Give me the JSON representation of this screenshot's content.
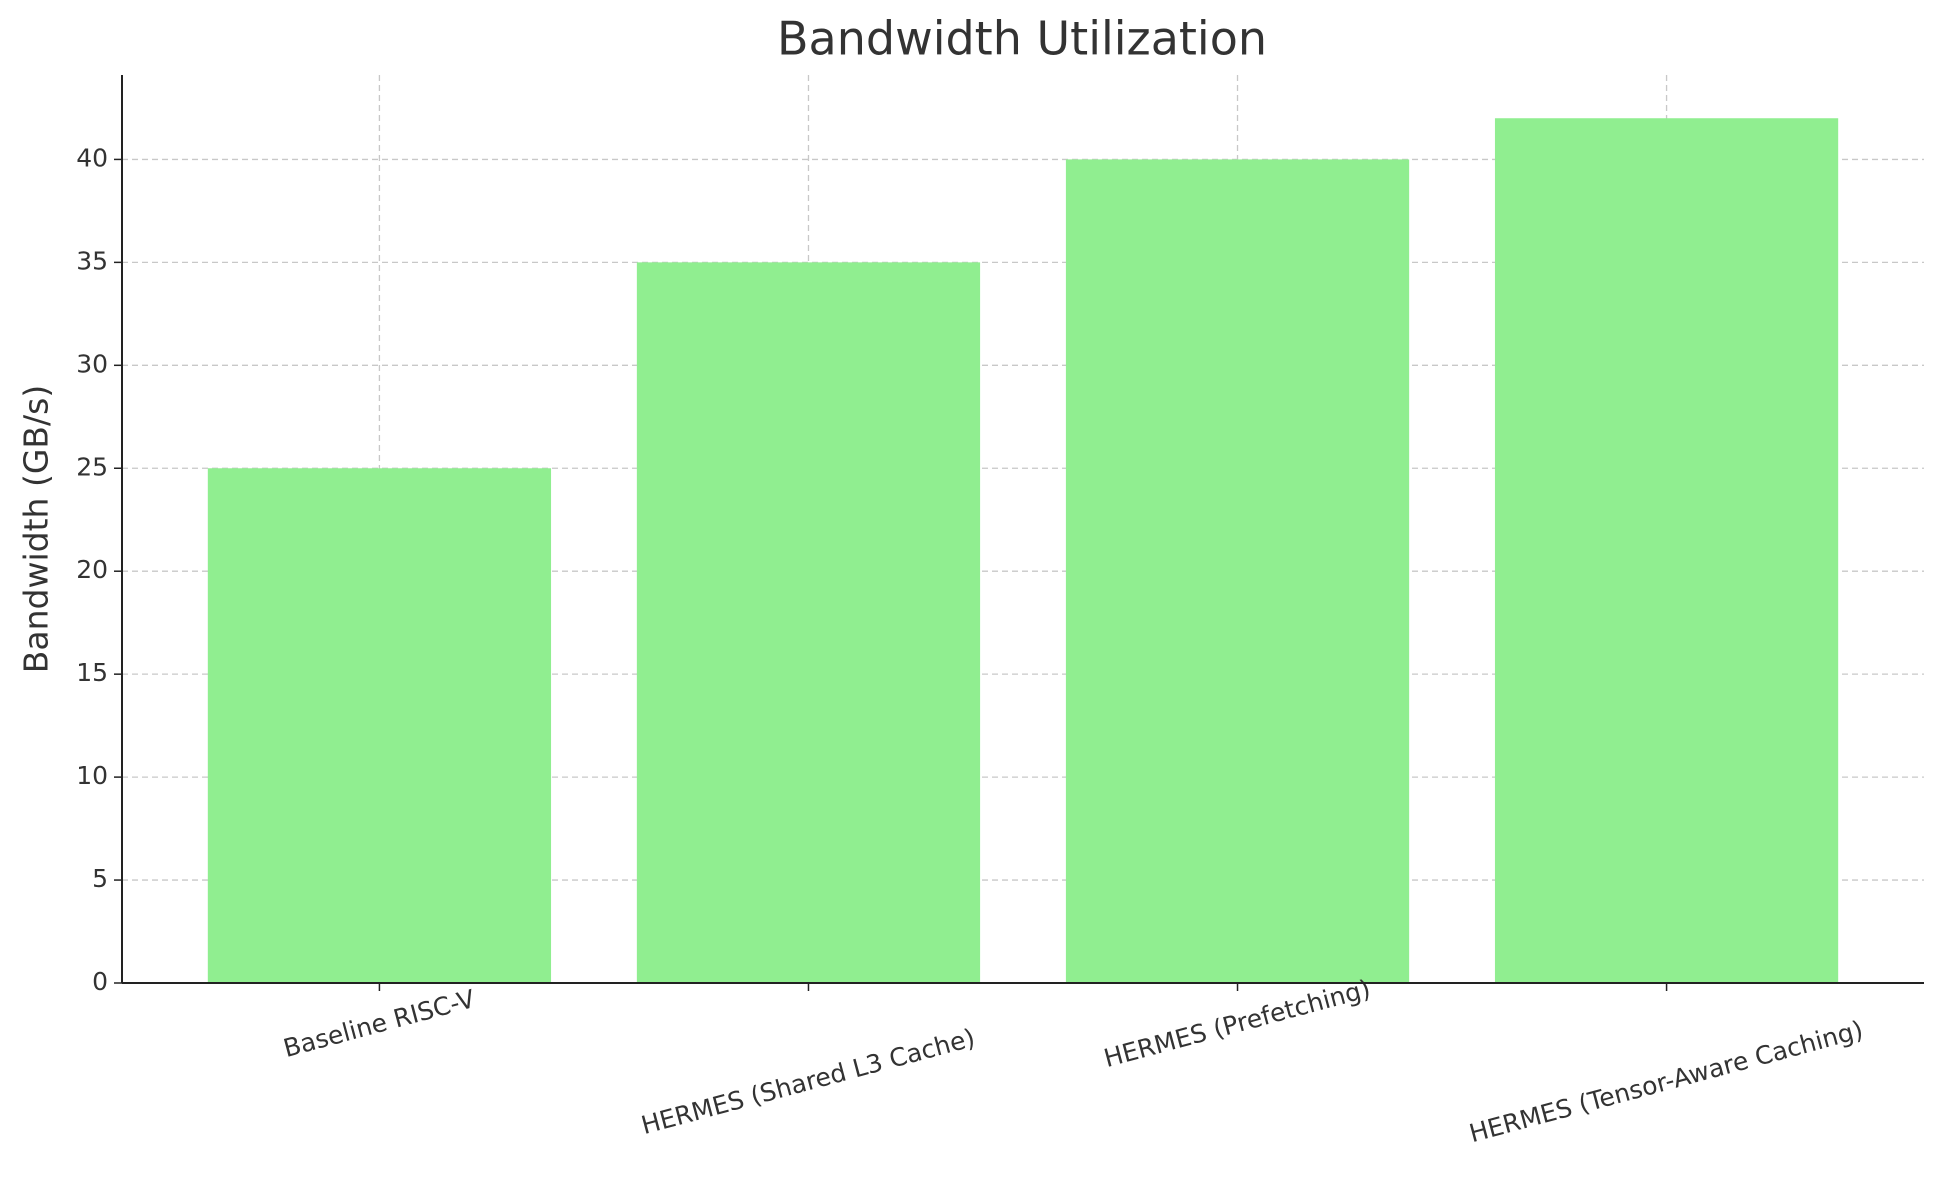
{
  "chart_data": {
    "type": "bar",
    "title": "Bandwidth Utilization",
    "y_label": "Bandwidth (GB/s)",
    "categories": [
      "Baseline RISC-V",
      "HERMES (Shared L3 Cache)",
      "HERMES (Prefetching)",
      "HERMES (Tensor-Aware Caching)"
    ],
    "values": [
      25,
      35,
      40,
      42
    ],
    "color": "#90ee90",
    "ylim": [
      0,
      44.1
    ],
    "yticks": [
      0,
      5,
      10,
      15,
      20,
      25,
      30,
      35,
      40
    ],
    "grid": true
  }
}
